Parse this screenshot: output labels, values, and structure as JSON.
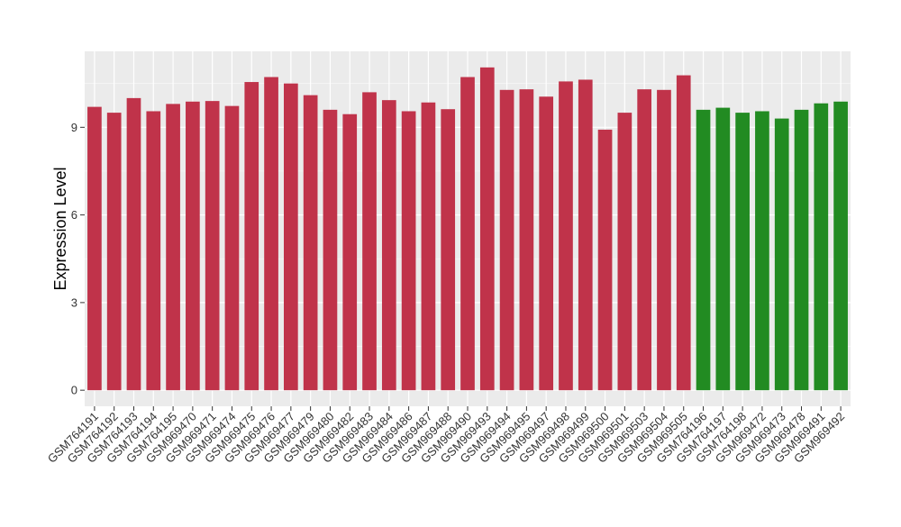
{
  "chart_data": {
    "type": "bar",
    "title": "",
    "xlabel": "",
    "ylabel": "Expression Level",
    "ylim": [
      -0.55,
      11.6
    ],
    "yticks": [
      0,
      3,
      6,
      9
    ],
    "grid": true,
    "categories": [
      "GSM764191",
      "GSM764192",
      "GSM764193",
      "GSM764194",
      "GSM764195",
      "GSM969470",
      "GSM969471",
      "GSM969474",
      "GSM969475",
      "GSM969476",
      "GSM969477",
      "GSM969479",
      "GSM969480",
      "GSM969482",
      "GSM969483",
      "GSM969484",
      "GSM969486",
      "GSM969487",
      "GSM969488",
      "GSM969490",
      "GSM969493",
      "GSM969494",
      "GSM969495",
      "GSM969497",
      "GSM969498",
      "GSM969499",
      "GSM969500",
      "GSM969501",
      "GSM969503",
      "GSM969504",
      "GSM969505",
      "GSM764196",
      "GSM764197",
      "GSM764198",
      "GSM969472",
      "GSM969473",
      "GSM969478",
      "GSM969491",
      "GSM969492"
    ],
    "values": [
      9.7,
      9.5,
      10.0,
      9.55,
      9.8,
      9.88,
      9.9,
      9.73,
      10.55,
      10.72,
      10.5,
      10.1,
      9.6,
      9.45,
      10.2,
      9.93,
      9.55,
      9.85,
      9.62,
      10.72,
      11.05,
      10.28,
      10.3,
      10.05,
      10.57,
      10.63,
      8.92,
      9.5,
      10.3,
      10.28,
      10.78,
      9.6,
      9.67,
      9.5,
      9.55,
      9.3,
      9.6,
      9.82,
      9.88
    ],
    "bar_colors": [
      "#c0334a",
      "#c0334a",
      "#c0334a",
      "#c0334a",
      "#c0334a",
      "#c0334a",
      "#c0334a",
      "#c0334a",
      "#c0334a",
      "#c0334a",
      "#c0334a",
      "#c0334a",
      "#c0334a",
      "#c0334a",
      "#c0334a",
      "#c0334a",
      "#c0334a",
      "#c0334a",
      "#c0334a",
      "#c0334a",
      "#c0334a",
      "#c0334a",
      "#c0334a",
      "#c0334a",
      "#c0334a",
      "#c0334a",
      "#c0334a",
      "#c0334a",
      "#c0334a",
      "#c0334a",
      "#c0334a",
      "#228b22",
      "#228b22",
      "#228b22",
      "#228b22",
      "#228b22",
      "#228b22",
      "#228b22",
      "#228b22"
    ],
    "panel_background": "#ebebeb",
    "grid_color": "#ffffff"
  }
}
